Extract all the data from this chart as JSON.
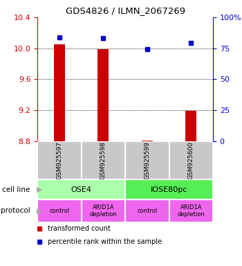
{
  "title": "GDS4826 / ILMN_2067269",
  "samples": [
    "GSM925597",
    "GSM925598",
    "GSM925599",
    "GSM925600"
  ],
  "bar_values": [
    10.05,
    9.99,
    8.805,
    9.19
  ],
  "bar_bottom": 8.8,
  "bar_color": "#cc0000",
  "dot_values": [
    84,
    83,
    74,
    79
  ],
  "dot_color": "#0000cc",
  "ylim_left": [
    8.8,
    10.4
  ],
  "ylim_right": [
    0,
    100
  ],
  "yticks_left": [
    8.8,
    9.2,
    9.6,
    10.0,
    10.4
  ],
  "yticks_right": [
    0,
    25,
    50,
    75,
    100
  ],
  "ytick_labels_right": [
    "0",
    "25",
    "50",
    "75",
    "100%"
  ],
  "gridlines": [
    10.0,
    9.6,
    9.2
  ],
  "cell_line_labels": [
    "OSE4",
    "IOSE80pc"
  ],
  "cell_line_spans": [
    [
      0,
      2
    ],
    [
      2,
      4
    ]
  ],
  "cell_line_colors": [
    "#aaffaa",
    "#55ee55"
  ],
  "protocol_labels": [
    "control",
    "ARID1A\ndepletion",
    "control",
    "ARID1A\ndepletion"
  ],
  "protocol_color": "#ee66ee",
  "sample_box_color": "#c8c8c8",
  "row_labels": [
    "cell line",
    "protocol"
  ],
  "legend_items": [
    {
      "color": "#cc0000",
      "label": "transformed count"
    },
    {
      "color": "#0000cc",
      "label": "percentile rank within the sample"
    }
  ],
  "left_axis_color": "#cc0000",
  "right_axis_color": "#0000cc",
  "bar_width": 0.25
}
